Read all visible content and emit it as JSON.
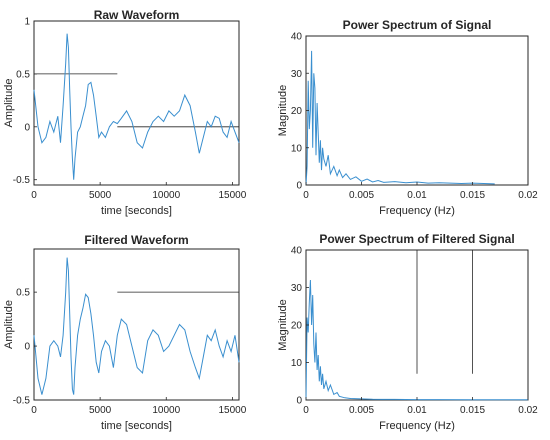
{
  "chart_data": [
    {
      "type": "line",
      "title": "Raw Waveform",
      "xlabel": "time [seconds]",
      "ylabel": "Amplitude",
      "xlim": [
        0,
        15500
      ],
      "ylim": [
        -0.55,
        1.0
      ],
      "xticks": [
        0,
        5000,
        10000,
        15000
      ],
      "xtick_labels": [
        "0",
        "5000",
        "10000",
        "15000"
      ],
      "yticks": [
        -0.5,
        0,
        0.5,
        1
      ],
      "ytick_labels": [
        "-0.5",
        "0",
        "0.5",
        "1"
      ],
      "reference_lines": [
        {
          "y": 0.5,
          "x_from": 0,
          "x_to": 6300
        },
        {
          "y": 0.0,
          "x_from": 6300,
          "x_to": 15500
        }
      ],
      "series": [
        {
          "color": "#3a8fcf",
          "x": [
            0,
            300,
            600,
            900,
            1200,
            1500,
            1800,
            2000,
            2200,
            2400,
            2500,
            2600,
            2700,
            2800,
            2900,
            3000,
            3100,
            3300,
            3500,
            3700,
            3900,
            4100,
            4300,
            4500,
            4700,
            4900,
            5100,
            5400,
            5700,
            6000,
            6300,
            6600,
            7000,
            7400,
            7800,
            8200,
            8600,
            9000,
            9400,
            9800,
            10200,
            10600,
            11000,
            11400,
            11800,
            12200,
            12500,
            12800,
            13100,
            13400,
            13700,
            14000,
            14300,
            14600,
            14900,
            15200,
            15500
          ],
          "y": [
            0.35,
            0.0,
            -0.15,
            -0.1,
            0.05,
            -0.05,
            0.1,
            -0.15,
            0.2,
            0.6,
            0.88,
            0.75,
            0.35,
            0.0,
            -0.3,
            -0.5,
            -0.3,
            -0.05,
            0.0,
            0.1,
            0.2,
            0.4,
            0.42,
            0.3,
            0.1,
            -0.1,
            -0.05,
            -0.1,
            0.0,
            0.05,
            0.03,
            0.08,
            0.15,
            0.05,
            -0.15,
            -0.2,
            -0.05,
            0.05,
            0.1,
            0.05,
            0.15,
            0.1,
            0.15,
            0.3,
            0.2,
            -0.05,
            -0.25,
            -0.1,
            0.05,
            0.0,
            0.1,
            0.08,
            -0.05,
            -0.1,
            0.05,
            -0.05,
            -0.15
          ]
        }
      ]
    },
    {
      "type": "line",
      "title": "Power Spectrum of Signal",
      "xlabel": "Frequency (Hz)",
      "ylabel": "Magnitude",
      "xlim": [
        0,
        0.02
      ],
      "ylim": [
        0,
        40
      ],
      "xticks": [
        0,
        0.005,
        0.01,
        0.015,
        0.02
      ],
      "xtick_labels": [
        "0",
        "0.005",
        "0.01",
        "0.015",
        "0.02"
      ],
      "yticks": [
        0,
        10,
        20,
        30,
        40
      ],
      "ytick_labels": [
        "0",
        "10",
        "20",
        "30",
        "40"
      ],
      "series": [
        {
          "color": "#3a8fcf",
          "x": [
            0,
            0.0001,
            0.0002,
            0.0003,
            0.0004,
            0.0005,
            0.0006,
            0.0007,
            0.0008,
            0.0009,
            0.001,
            0.0011,
            0.0012,
            0.0013,
            0.0014,
            0.0015,
            0.0016,
            0.0018,
            0.002,
            0.0022,
            0.0025,
            0.0028,
            0.003,
            0.0033,
            0.0036,
            0.004,
            0.0045,
            0.005,
            0.0055,
            0.006,
            0.0065,
            0.007,
            0.008,
            0.009,
            0.01,
            0.011,
            0.012,
            0.013,
            0.014,
            0.015,
            0.016,
            0.017
          ],
          "y": [
            0,
            5,
            28,
            15,
            20,
            36,
            10,
            30,
            26,
            8,
            22,
            14,
            6,
            12,
            4,
            10,
            7,
            5,
            8,
            3,
            5,
            2.5,
            4,
            2,
            3,
            1.5,
            2.2,
            1,
            1.6,
            0.8,
            1.2,
            0.7,
            0.9,
            0.6,
            0.8,
            0.5,
            0.6,
            0.5,
            0.4,
            0.5,
            0.4,
            0.3
          ]
        }
      ]
    },
    {
      "type": "line",
      "title": "Filtered Waveform",
      "xlabel": "time [seconds]",
      "ylabel": "Amplitude",
      "xlim": [
        0,
        15500
      ],
      "ylim": [
        -0.5,
        0.9
      ],
      "xticks": [
        0,
        5000,
        10000,
        15000
      ],
      "xtick_labels": [
        "0",
        "5000",
        "10000",
        "15000"
      ],
      "yticks": [
        -0.5,
        0,
        0.5
      ],
      "ytick_labels": [
        "-0.5",
        "0",
        "0.5"
      ],
      "reference_lines": [
        {
          "y": 0.5,
          "x_from": 6300,
          "x_to": 15500
        }
      ],
      "series": [
        {
          "color": "#3a8fcf",
          "x": [
            0,
            300,
            600,
            900,
            1200,
            1500,
            1800,
            2000,
            2200,
            2400,
            2500,
            2600,
            2700,
            2800,
            2900,
            3000,
            3100,
            3300,
            3500,
            3700,
            3900,
            4100,
            4300,
            4500,
            4700,
            4900,
            5100,
            5400,
            5700,
            6000,
            6300,
            6600,
            7000,
            7400,
            7800,
            8200,
            8600,
            9000,
            9400,
            9800,
            10200,
            10600,
            11000,
            11400,
            11800,
            12200,
            12500,
            12800,
            13100,
            13400,
            13700,
            14000,
            14300,
            14600,
            14900,
            15200,
            15500
          ],
          "y": [
            0.1,
            -0.3,
            -0.45,
            -0.3,
            0.0,
            0.05,
            0.0,
            -0.1,
            0.1,
            0.5,
            0.82,
            0.7,
            0.3,
            -0.1,
            -0.4,
            -0.45,
            -0.2,
            0.1,
            0.25,
            0.35,
            0.48,
            0.45,
            0.3,
            0.1,
            -0.15,
            -0.25,
            -0.05,
            0.05,
            0.0,
            -0.2,
            0.1,
            0.25,
            0.2,
            0.0,
            -0.2,
            -0.25,
            0.05,
            0.15,
            0.1,
            -0.05,
            0.0,
            0.1,
            0.2,
            0.15,
            -0.05,
            -0.2,
            -0.3,
            -0.1,
            0.1,
            0.05,
            0.15,
            0.0,
            -0.1,
            0.05,
            -0.05,
            0.1,
            -0.15
          ]
        }
      ]
    },
    {
      "type": "line",
      "title": "Power Spectrum of Filtered Signal",
      "xlabel": "Frequency (Hz)",
      "ylabel": "Magnitude",
      "xlim": [
        0,
        0.02
      ],
      "ylim": [
        0,
        40
      ],
      "xticks": [
        0,
        0.005,
        0.01,
        0.015,
        0.02
      ],
      "xtick_labels": [
        "0",
        "0.005",
        "0.01",
        "0.015",
        "0.02"
      ],
      "yticks": [
        0,
        10,
        20,
        30,
        40
      ],
      "ytick_labels": [
        "0",
        "10",
        "20",
        "30",
        "40"
      ],
      "reference_lines": [
        {
          "x": 0.01,
          "y_from": 7,
          "y_to": 40
        },
        {
          "x": 0.015,
          "y_from": 7,
          "y_to": 40
        }
      ],
      "series": [
        {
          "color": "#3a8fcf",
          "x": [
            0,
            0.0001,
            0.0002,
            0.0003,
            0.0004,
            0.0005,
            0.0006,
            0.0007,
            0.0008,
            0.0009,
            0.001,
            0.0011,
            0.0012,
            0.0013,
            0.0014,
            0.0015,
            0.0016,
            0.0018,
            0.002,
            0.0022,
            0.0025,
            0.0028,
            0.003,
            0.0035,
            0.004,
            0.005,
            0.006,
            0.008,
            0.01,
            0.012,
            0.015,
            0.018,
            0.02
          ],
          "y": [
            0,
            22,
            18,
            26,
            32,
            20,
            28,
            15,
            10,
            18,
            8,
            12,
            5,
            9,
            4,
            7,
            3,
            5,
            2.5,
            4,
            1.5,
            2,
            1,
            0.6,
            0.4,
            0.3,
            0.2,
            0.15,
            0.1,
            0.1,
            0.05,
            0.05,
            0.05
          ]
        }
      ]
    }
  ]
}
